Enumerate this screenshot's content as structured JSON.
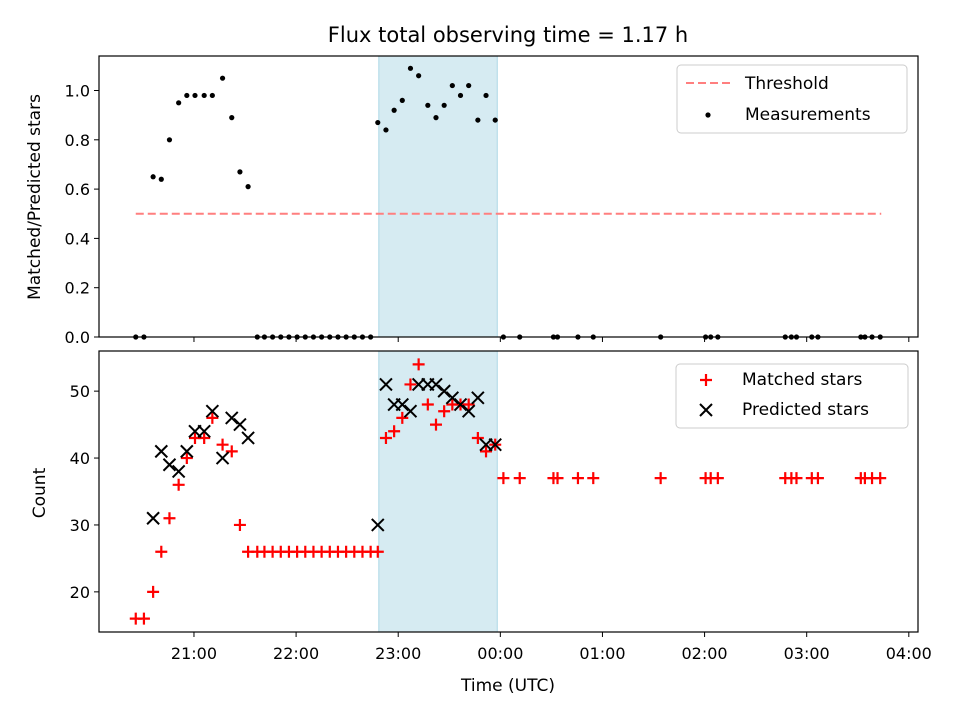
{
  "figure": {
    "title": "Flux total observing time = 1.17 h",
    "xlabel": "Time (UTC)",
    "x_ticks": [
      "21:00",
      "22:00",
      "23:00",
      "00:00",
      "01:00",
      "02:00",
      "03:00",
      "04:00"
    ]
  },
  "colors": {
    "threshold": "#ff7f7f",
    "measurements": "#000000",
    "matched": "#ff0000",
    "predicted": "#000000",
    "span": "#add8e6"
  },
  "chart_data": [
    {
      "type": "scatter",
      "ylabel": "Matched/Predicted stars",
      "x_unit": "hours after 20:00 UTC",
      "xlim": [
        0.07,
        8.09
      ],
      "ylim": [
        0.0,
        1.14
      ],
      "y_ticks": [
        "0.0",
        "0.2",
        "0.4",
        "0.6",
        "0.8",
        "1.0"
      ],
      "legend_position": "top-right",
      "highlight_span": [
        2.81,
        3.97
      ],
      "threshold": {
        "name": "Threshold",
        "y": 0.5,
        "x_range": [
          0.43,
          7.73
        ]
      },
      "series": [
        {
          "name": "Measurements",
          "x": [
            0.43,
            0.51,
            0.6,
            0.68,
            0.76,
            0.85,
            0.93,
            1.01,
            1.1,
            1.18,
            1.28,
            1.37,
            1.45,
            1.53,
            1.62,
            1.69,
            1.77,
            1.85,
            1.93,
            2.01,
            2.09,
            2.17,
            2.25,
            2.33,
            2.41,
            2.49,
            2.57,
            2.65,
            2.73,
            2.8,
            2.88,
            2.96,
            3.04,
            3.12,
            3.2,
            3.29,
            3.37,
            3.45,
            3.53,
            3.61,
            3.69,
            3.78,
            3.86,
            3.95,
            4.03,
            4.19,
            4.52,
            4.56,
            4.76,
            4.91,
            5.57,
            6.01,
            6.06,
            6.13,
            6.79,
            6.85,
            6.9,
            7.05,
            7.11,
            7.53,
            7.57,
            7.64,
            7.72
          ],
          "y": [
            0.0,
            0.0,
            0.65,
            0.64,
            0.8,
            0.95,
            0.98,
            0.98,
            0.98,
            0.98,
            1.05,
            0.89,
            0.67,
            0.61,
            0.0,
            0.0,
            0.0,
            0.0,
            0.0,
            0.0,
            0.0,
            0.0,
            0.0,
            0.0,
            0.0,
            0.0,
            0.0,
            0.0,
            0.0,
            0.87,
            0.84,
            0.92,
            0.96,
            1.09,
            1.06,
            0.94,
            0.89,
            0.94,
            1.02,
            0.98,
            1.02,
            0.88,
            0.98,
            0.88,
            0.0,
            0.0,
            0.0,
            0.0,
            0.0,
            0.0,
            0.0,
            0.0,
            0.0,
            0.0,
            0.0,
            0.0,
            0.0,
            0.0,
            0.0,
            0.0,
            0.0,
            0.0,
            0.0
          ]
        }
      ]
    },
    {
      "type": "scatter",
      "ylabel": "Count",
      "x_unit": "hours after 20:00 UTC",
      "xlim": [
        0.07,
        8.09
      ],
      "ylim": [
        14,
        56
      ],
      "y_ticks": [
        "20",
        "30",
        "40",
        "50"
      ],
      "legend_position": "top-right",
      "highlight_span": [
        2.81,
        3.97
      ],
      "series": [
        {
          "name": "Matched stars",
          "marker": "+",
          "x": [
            0.43,
            0.51,
            0.6,
            0.68,
            0.76,
            0.85,
            0.93,
            1.01,
            1.1,
            1.18,
            1.28,
            1.37,
            1.45,
            1.53,
            1.62,
            1.69,
            1.77,
            1.85,
            1.93,
            2.01,
            2.09,
            2.17,
            2.25,
            2.33,
            2.41,
            2.49,
            2.57,
            2.65,
            2.73,
            2.8,
            2.88,
            2.96,
            3.04,
            3.12,
            3.2,
            3.29,
            3.37,
            3.45,
            3.53,
            3.61,
            3.69,
            3.78,
            3.86,
            3.95,
            4.03,
            4.19,
            4.52,
            4.56,
            4.76,
            4.91,
            5.57,
            6.01,
            6.06,
            6.13,
            6.79,
            6.85,
            6.9,
            7.05,
            7.11,
            7.53,
            7.57,
            7.64,
            7.72
          ],
          "y": [
            16,
            16,
            20,
            26,
            31,
            36,
            40,
            43,
            43,
            46,
            42,
            41,
            30,
            26,
            26,
            26,
            26,
            26,
            26,
            26,
            26,
            26,
            26,
            26,
            26,
            26,
            26,
            26,
            26,
            26,
            43,
            44,
            46,
            51,
            54,
            48,
            45,
            47,
            48,
            48,
            48,
            43,
            41,
            42,
            37,
            37,
            37,
            37,
            37,
            37,
            37,
            37,
            37,
            37,
            37,
            37,
            37,
            37,
            37,
            37,
            37,
            37,
            37
          ]
        },
        {
          "name": "Predicted stars",
          "marker": "x",
          "x": [
            0.6,
            0.68,
            0.76,
            0.85,
            0.93,
            1.01,
            1.1,
            1.18,
            1.28,
            1.37,
            1.45,
            1.53,
            2.8,
            2.88,
            2.96,
            3.04,
            3.12,
            3.2,
            3.29,
            3.37,
            3.45,
            3.53,
            3.61,
            3.69,
            3.78,
            3.86,
            3.95
          ],
          "y": [
            31,
            41,
            39,
            38,
            41,
            44,
            44,
            47,
            40,
            46,
            45,
            43,
            30,
            51,
            48,
            48,
            47,
            51,
            51,
            51,
            50,
            49,
            48,
            47,
            49,
            42,
            42
          ]
        }
      ]
    }
  ]
}
